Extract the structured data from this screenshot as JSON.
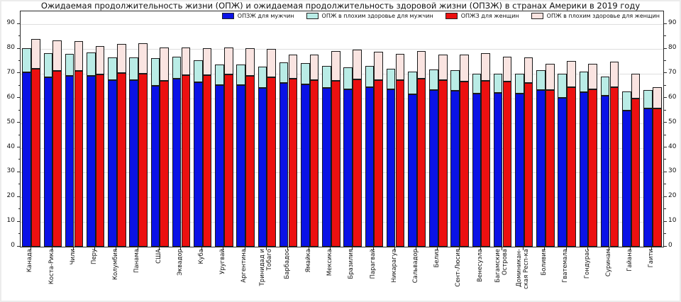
{
  "colors": {
    "male_hale": "#0a12e6",
    "male_poor_health": "#b9ece6",
    "female_hale": "#ec1010",
    "female_poor_health": "#fae4e1",
    "frame": "#2b2b2b",
    "grid": "#dedede"
  },
  "legend": [
    {
      "label": "ОПЗЖ для мужчин",
      "color": "#0a12e6",
      "name": "legend-male-hale"
    },
    {
      "label": "ОПЖ в плохим здоровье для мужчин",
      "color": "#b9ece6",
      "name": "legend-male-poor"
    },
    {
      "label": "ОПЖЗ для женщин",
      "color": "#ec1010",
      "name": "legend-female-hale"
    },
    {
      "label": "ОПЖ в плохим здоровье для женщин",
      "color": "#fae4e1",
      "name": "legend-female-poor"
    }
  ],
  "chart_data": {
    "type": "bar",
    "stacked": true,
    "title": "Ожидаемая продолжительность жизни (ОПЖ) и ожидаемая продолжительность здоровой жизни (ОПЗЖ) в странах Америки в 2019 году",
    "xlabel": "",
    "ylabel": "",
    "ylim": [
      0,
      95.2
    ],
    "y_ticks": [
      0,
      10,
      20,
      30,
      40,
      50,
      60,
      70,
      80,
      90
    ],
    "grid": true,
    "legend_position": "upper-right",
    "categories": [
      "Канада",
      "Коста-Рика",
      "Чили",
      "Перу",
      "Колумбия",
      "Панама",
      "США",
      "Эквадор",
      "Куба",
      "Уругвай",
      "Аргентина",
      "Тринидад и\nТобаго",
      "Барбадос",
      "Ямайка",
      "Мексика",
      "Бразилия",
      "Парагвай",
      "Никарагуа",
      "Сальвадор",
      "Белиз",
      "Сент-Люсия",
      "Венесуэла",
      "Багамские\nОстрова",
      "Доминикан-\nская Респ-ка",
      "Боливия",
      "Гватемала",
      "Гондурас",
      "Суринам",
      "Гайана",
      "Гаити"
    ],
    "series": [
      {
        "name": "ОПЗЖ для мужчин",
        "group": "male",
        "segment": "base",
        "color": "#0a12e6",
        "values": [
          70.5,
          68.6,
          69.0,
          69.2,
          67.3,
          67.4,
          65.2,
          68.0,
          66.5,
          65.4,
          65.4,
          64.2,
          66.3,
          65.8,
          64.3,
          63.7,
          64.6,
          63.7,
          61.7,
          63.5,
          63.2,
          61.9,
          62.2,
          61.9,
          63.4,
          60.1,
          62.4,
          61.1,
          55.1,
          55.8
        ]
      },
      {
        "name": "ОПЖ в плохим здоровье для мужчин",
        "group": "male",
        "segment": "stack-top-total-LE",
        "color": "#b9ece6",
        "values": [
          80.4,
          78.3,
          78.1,
          78.5,
          76.7,
          76.6,
          76.3,
          76.8,
          75.5,
          73.6,
          73.6,
          72.8,
          74.7,
          74.4,
          73.2,
          72.5,
          73.2,
          72.1,
          70.8,
          71.8,
          71.5,
          70.0,
          69.9,
          70.1,
          71.3,
          70.1,
          70.8,
          68.9,
          62.7,
          63.4
        ]
      },
      {
        "name": "ОПЖЗ для женщин",
        "group": "female",
        "segment": "base",
        "color": "#ec1010",
        "values": [
          72.0,
          71.2,
          71.0,
          69.8,
          70.4,
          70.0,
          67.0,
          69.5,
          69.3,
          69.6,
          69.2,
          68.6,
          68.0,
          67.3,
          67.2,
          67.6,
          67.3,
          67.3,
          68.0,
          67.5,
          66.7,
          67.0,
          66.7,
          66.2,
          63.4,
          64.6,
          63.7,
          64.6,
          60.0,
          55.8
        ]
      },
      {
        "name": "ОПЖ в плохим здоровье для женщин",
        "group": "female",
        "segment": "stack-top-total-LE",
        "color": "#fae4e1",
        "values": [
          84.1,
          83.5,
          83.3,
          81.3,
          82.0,
          82.2,
          80.7,
          80.7,
          80.4,
          80.6,
          80.2,
          79.9,
          77.6,
          77.7,
          79.1,
          79.6,
          79.0,
          78.0,
          79.1,
          77.8,
          77.8,
          78.3,
          76.8,
          76.6,
          73.9,
          75.2,
          74.0,
          74.9,
          69.9,
          64.6
        ]
      }
    ]
  }
}
